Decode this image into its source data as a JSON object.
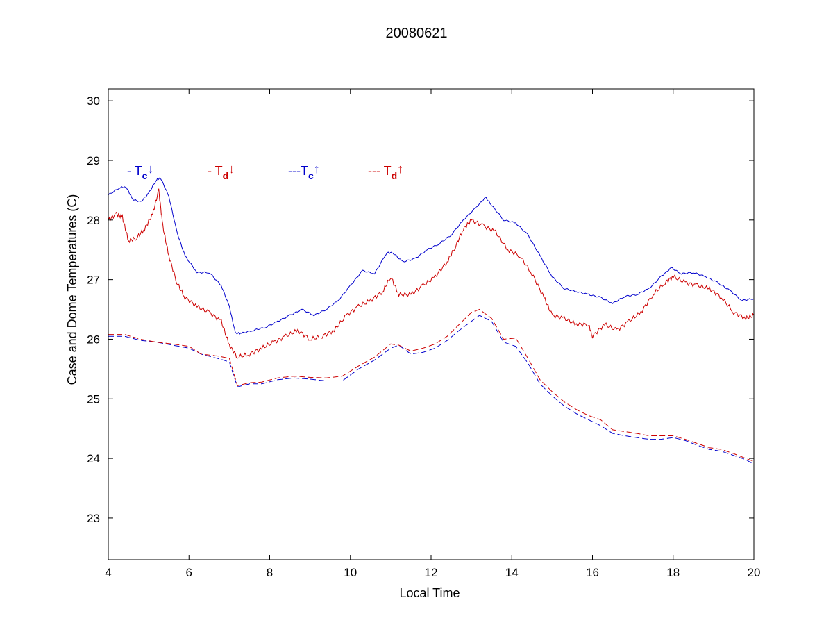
{
  "chart_data": {
    "type": "line",
    "title": "20080621",
    "xlabel": "Local Time",
    "ylabel": "Case and Dome Temperatures (C)",
    "xlim": [
      4,
      20
    ],
    "ylim": [
      22.3,
      30.2
    ],
    "xticks": [
      4,
      6,
      8,
      10,
      12,
      14,
      16,
      18,
      20
    ],
    "yticks": [
      23,
      24,
      25,
      26,
      27,
      28,
      29,
      30
    ],
    "grid": false,
    "legend_position": "top-left",
    "legend": [
      {
        "prefix": "- T",
        "sub": "c",
        "arrow": "↓",
        "color": "#0000cc",
        "dash": "solid"
      },
      {
        "prefix": "- T",
        "sub": "d",
        "arrow": "↓",
        "color": "#cc0000",
        "dash": "solid"
      },
      {
        "prefix": "---T",
        "sub": "c",
        "arrow": "↑",
        "color": "#0000cc",
        "dash": "dashed"
      },
      {
        "prefix": "--- T",
        "sub": "d",
        "arrow": "↑",
        "color": "#cc0000",
        "dash": "dashed"
      }
    ],
    "series": [
      {
        "color": "#0000cc",
        "dash": "solid",
        "x": [
          4.0,
          4.3,
          4.45,
          4.6,
          4.8,
          5.0,
          5.2,
          5.3,
          5.5,
          5.7,
          5.9,
          6.2,
          6.5,
          6.8,
          7.0,
          7.15,
          7.3,
          7.6,
          7.9,
          8.2,
          8.5,
          8.8,
          9.1,
          9.4,
          9.7,
          10.0,
          10.3,
          10.6,
          10.9,
          11.05,
          11.3,
          11.6,
          11.9,
          12.2,
          12.5,
          12.8,
          13.1,
          13.35,
          13.5,
          13.8,
          14.1,
          14.4,
          14.7,
          15.0,
          15.3,
          15.6,
          15.9,
          16.2,
          16.5,
          16.8,
          17.1,
          17.4,
          17.7,
          17.95,
          18.2,
          18.5,
          18.8,
          19.1,
          19.4,
          19.7,
          20.0
        ],
        "y": [
          28.42,
          28.55,
          28.55,
          28.35,
          28.3,
          28.45,
          28.68,
          28.7,
          28.4,
          27.8,
          27.4,
          27.12,
          27.12,
          26.9,
          26.55,
          26.1,
          26.1,
          26.15,
          26.2,
          26.3,
          26.4,
          26.5,
          26.4,
          26.5,
          26.65,
          26.9,
          27.15,
          27.1,
          27.45,
          27.45,
          27.3,
          27.35,
          27.5,
          27.6,
          27.75,
          28.0,
          28.2,
          28.38,
          28.25,
          28.0,
          27.95,
          27.75,
          27.4,
          27.05,
          26.85,
          26.8,
          26.75,
          26.7,
          26.6,
          26.72,
          26.75,
          26.85,
          27.05,
          27.2,
          27.1,
          27.12,
          27.05,
          26.95,
          26.82,
          26.65,
          26.68
        ]
      },
      {
        "color": "#cc0000",
        "dash": "solid",
        "x": [
          4.0,
          4.2,
          4.35,
          4.5,
          4.7,
          4.9,
          5.1,
          5.25,
          5.35,
          5.5,
          5.7,
          5.9,
          6.2,
          6.5,
          6.8,
          7.0,
          7.2,
          7.5,
          7.8,
          8.1,
          8.4,
          8.7,
          9.0,
          9.3,
          9.6,
          9.9,
          10.2,
          10.5,
          10.8,
          11.0,
          11.2,
          11.5,
          11.8,
          12.1,
          12.4,
          12.6,
          12.8,
          13.0,
          13.3,
          13.6,
          13.9,
          14.2,
          14.5,
          14.8,
          15.0,
          15.3,
          15.6,
          15.9,
          16.0,
          16.3,
          16.6,
          16.9,
          17.2,
          17.5,
          17.8,
          18.0,
          18.3,
          18.6,
          18.9,
          19.2,
          19.5,
          19.8,
          20.0
        ],
        "y": [
          28.0,
          28.1,
          28.05,
          27.65,
          27.7,
          27.85,
          28.1,
          28.5,
          27.9,
          27.4,
          26.95,
          26.7,
          26.55,
          26.45,
          26.3,
          25.9,
          25.7,
          25.75,
          25.85,
          25.95,
          26.05,
          26.15,
          26.0,
          26.05,
          26.15,
          26.4,
          26.55,
          26.65,
          26.8,
          27.05,
          26.75,
          26.75,
          26.9,
          27.05,
          27.3,
          27.55,
          27.85,
          28.0,
          27.9,
          27.8,
          27.5,
          27.4,
          27.1,
          26.7,
          26.4,
          26.35,
          26.25,
          26.25,
          26.05,
          26.25,
          26.15,
          26.3,
          26.45,
          26.75,
          26.95,
          27.05,
          26.95,
          26.9,
          26.85,
          26.7,
          26.45,
          26.35,
          26.4
        ]
      },
      {
        "color": "#0000cc",
        "dash": "dashed",
        "x": [
          4.0,
          4.4,
          4.8,
          5.2,
          5.6,
          6.0,
          6.3,
          6.7,
          7.0,
          7.2,
          7.5,
          7.8,
          8.2,
          8.6,
          9.0,
          9.4,
          9.8,
          10.2,
          10.6,
          11.0,
          11.2,
          11.5,
          11.8,
          12.1,
          12.4,
          12.7,
          13.0,
          13.2,
          13.5,
          13.8,
          14.1,
          14.4,
          14.7,
          15.0,
          15.3,
          15.6,
          15.9,
          16.2,
          16.5,
          16.8,
          17.1,
          17.4,
          17.7,
          18.0,
          18.3,
          18.6,
          18.9,
          19.2,
          19.5,
          19.8,
          20.0
        ],
        "y": [
          26.05,
          26.05,
          25.98,
          25.95,
          25.9,
          25.85,
          25.75,
          25.68,
          25.62,
          25.2,
          25.25,
          25.25,
          25.32,
          25.35,
          25.33,
          25.3,
          25.3,
          25.5,
          25.65,
          25.85,
          25.9,
          25.75,
          25.78,
          25.85,
          25.98,
          26.15,
          26.3,
          26.4,
          26.3,
          25.95,
          25.88,
          25.6,
          25.25,
          25.05,
          24.88,
          24.75,
          24.65,
          24.55,
          24.42,
          24.38,
          24.35,
          24.32,
          24.32,
          24.35,
          24.3,
          24.22,
          24.15,
          24.12,
          24.05,
          23.98,
          23.9
        ]
      },
      {
        "color": "#cc0000",
        "dash": "dashed",
        "x": [
          4.0,
          4.4,
          4.8,
          5.2,
          5.6,
          6.0,
          6.3,
          6.7,
          7.0,
          7.2,
          7.5,
          7.8,
          8.2,
          8.6,
          9.0,
          9.4,
          9.8,
          10.2,
          10.6,
          11.0,
          11.2,
          11.5,
          11.8,
          12.1,
          12.4,
          12.7,
          13.0,
          13.2,
          13.5,
          13.8,
          14.1,
          14.4,
          14.7,
          15.0,
          15.3,
          15.6,
          15.9,
          16.2,
          16.5,
          16.8,
          17.1,
          17.4,
          17.7,
          18.0,
          18.3,
          18.6,
          18.9,
          19.2,
          19.5,
          19.8,
          20.0
        ],
        "y": [
          26.08,
          26.08,
          26.0,
          25.95,
          25.92,
          25.88,
          25.75,
          25.72,
          25.68,
          25.22,
          25.27,
          25.28,
          25.35,
          25.38,
          25.36,
          25.35,
          25.38,
          25.55,
          25.7,
          25.92,
          25.9,
          25.8,
          25.85,
          25.92,
          26.05,
          26.25,
          26.45,
          26.5,
          26.35,
          26.0,
          26.02,
          25.68,
          25.32,
          25.12,
          24.95,
          24.82,
          24.72,
          24.65,
          24.48,
          24.45,
          24.42,
          24.38,
          24.38,
          24.38,
          24.32,
          24.25,
          24.18,
          24.15,
          24.08,
          24.0,
          23.95
        ]
      }
    ]
  }
}
